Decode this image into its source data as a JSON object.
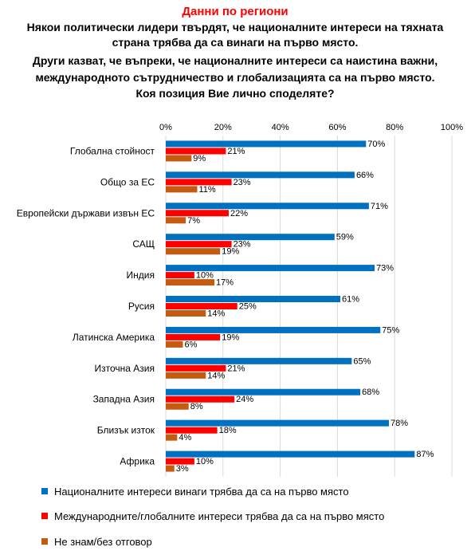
{
  "chart_data": {
    "type": "bar",
    "orientation": "horizontal",
    "title": "Данни по региони",
    "subtitle": [
      "Някои политически лидери твърдят, че националните интереси на тяхната",
      "страна трябва да са винаги на първо място.",
      "Други казват, че въпреки, че националните интереси са наистина важни,",
      "международното сътрудничество и глобализацията са на първо място.",
      "Коя позиция Вие лично споделяте?"
    ],
    "categories": [
      "Глобална стойност",
      "Общо за ЕС",
      "Европейски държави извън ЕС",
      "САЩ",
      "Индия",
      "Русия",
      "Латинска Америка",
      "Източна Азия",
      "Западна Азия",
      "Близък изток",
      "Африка"
    ],
    "series": [
      {
        "name": "Националните интереси винаги трябва да са на първо място",
        "color": "#0070C0",
        "values": [
          70,
          66,
          71,
          59,
          73,
          61,
          75,
          65,
          68,
          78,
          87
        ]
      },
      {
        "name": "Международните/глобалните интереси трябва да са на първо място",
        "color": "#FF0000",
        "values": [
          21,
          23,
          22,
          23,
          10,
          25,
          19,
          21,
          24,
          18,
          10
        ]
      },
      {
        "name": "Не знам/без отговор",
        "color": "#C55A11",
        "values": [
          9,
          11,
          7,
          19,
          17,
          14,
          6,
          14,
          8,
          4,
          3
        ]
      }
    ],
    "xlim": [
      0,
      100
    ],
    "xticks": [
      "0%",
      "20%",
      "40%",
      "60%",
      "80%",
      "100%"
    ],
    "value_suffix": "%",
    "grid": true,
    "legend_position": "bottom",
    "title_color": "#FF0000",
    "text_color": "#000000",
    "grid_color": "#D9D9D9"
  }
}
